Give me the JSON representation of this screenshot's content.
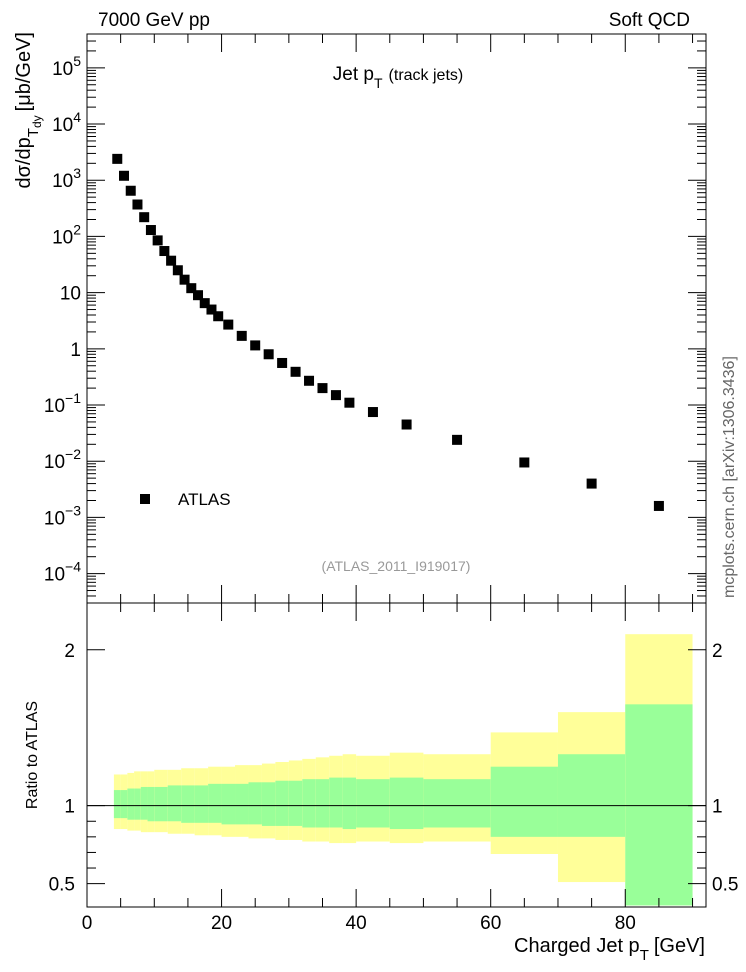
{
  "header": {
    "left": "7000 GeV pp",
    "right": "Soft QCD"
  },
  "side_label": "mcplots.cern.ch [arXiv:1306.3436]",
  "chart_data": [
    {
      "type": "scatter",
      "title_main": "Jet p",
      "title_sub": "T",
      "title_suffix": "(track jets)",
      "ylabel": {
        "pre": "dσ/dp",
        "sub": "T",
        "subsub": "dy",
        "post": "[μb/GeV]"
      },
      "y_scale": "log",
      "ylim": [
        3e-05,
        400000
      ],
      "xlim": [
        0,
        92
      ],
      "y_ticks": [
        {
          "v": 0.0001,
          "base": "10",
          "exp": "−4"
        },
        {
          "v": 0.001,
          "base": "10",
          "exp": "−3"
        },
        {
          "v": 0.01,
          "base": "10",
          "exp": "−2"
        },
        {
          "v": 0.1,
          "base": "10",
          "exp": "−1"
        },
        {
          "v": 1,
          "base": "1",
          "exp": ""
        },
        {
          "v": 10,
          "base": "10",
          "exp": ""
        },
        {
          "v": 100,
          "base": "10",
          "exp": "2"
        },
        {
          "v": 1000,
          "base": "10",
          "exp": "3"
        },
        {
          "v": 10000,
          "base": "10",
          "exp": "4"
        },
        {
          "v": 100000,
          "base": "10",
          "exp": "5"
        }
      ],
      "series": [
        {
          "name": "ATLAS",
          "color": "#000000",
          "points": [
            {
              "x": 4.5,
              "y": 2400
            },
            {
              "x": 5.5,
              "y": 1200
            },
            {
              "x": 6.5,
              "y": 650
            },
            {
              "x": 7.5,
              "y": 370
            },
            {
              "x": 8.5,
              "y": 220
            },
            {
              "x": 9.5,
              "y": 130
            },
            {
              "x": 10.5,
              "y": 85
            },
            {
              "x": 11.5,
              "y": 55
            },
            {
              "x": 12.5,
              "y": 37
            },
            {
              "x": 13.5,
              "y": 25
            },
            {
              "x": 14.5,
              "y": 17
            },
            {
              "x": 15.5,
              "y": 12
            },
            {
              "x": 16.5,
              "y": 9
            },
            {
              "x": 17.5,
              "y": 6.5
            },
            {
              "x": 18.5,
              "y": 5
            },
            {
              "x": 19.5,
              "y": 3.8
            },
            {
              "x": 21,
              "y": 2.7
            },
            {
              "x": 23,
              "y": 1.7
            },
            {
              "x": 25,
              "y": 1.15
            },
            {
              "x": 27,
              "y": 0.8
            },
            {
              "x": 29,
              "y": 0.56
            },
            {
              "x": 31,
              "y": 0.39
            },
            {
              "x": 33,
              "y": 0.27
            },
            {
              "x": 35,
              "y": 0.2
            },
            {
              "x": 37,
              "y": 0.15
            },
            {
              "x": 39,
              "y": 0.11
            },
            {
              "x": 42.5,
              "y": 0.075
            },
            {
              "x": 47.5,
              "y": 0.045
            },
            {
              "x": 55,
              "y": 0.024
            },
            {
              "x": 65,
              "y": 0.0095
            },
            {
              "x": 75,
              "y": 0.004
            },
            {
              "x": 85,
              "y": 0.0016
            }
          ]
        }
      ],
      "legend": {
        "placement": "bottom-left",
        "label": "ATLAS"
      },
      "watermark": "(ATLAS_2011_I919017)"
    },
    {
      "type": "area",
      "ylabel": "Ratio to ATLAS",
      "xlabel": {
        "pre": "Charged Jet p",
        "sub": "T",
        "post": "[GeV]"
      },
      "ylim": [
        0.35,
        2.3
      ],
      "xlim": [
        0,
        92
      ],
      "x_ticks": [
        "0",
        "20",
        "40",
        "60",
        "80"
      ],
      "x_tick_values": [
        0,
        20,
        40,
        60,
        80
      ],
      "y_ticks": [
        "0.5",
        "1",
        "2"
      ],
      "y_tick_values": [
        0.5,
        1,
        2
      ],
      "reference_line": 1,
      "band_colors": {
        "outer": "#ffff99",
        "inner": "#99ff99"
      },
      "bins": [
        {
          "lo": 4,
          "hi": 5,
          "y1": 1.2,
          "y0": 0.85,
          "g1": 1.1,
          "g0": 0.92
        },
        {
          "lo": 5,
          "hi": 6,
          "y1": 1.2,
          "y0": 0.85,
          "g1": 1.1,
          "g0": 0.92
        },
        {
          "lo": 6,
          "hi": 7,
          "y1": 1.21,
          "y0": 0.84,
          "g1": 1.11,
          "g0": 0.91
        },
        {
          "lo": 7,
          "hi": 8,
          "y1": 1.22,
          "y0": 0.84,
          "g1": 1.11,
          "g0": 0.91
        },
        {
          "lo": 8,
          "hi": 9,
          "y1": 1.22,
          "y0": 0.83,
          "g1": 1.12,
          "g0": 0.91
        },
        {
          "lo": 9,
          "hi": 10,
          "y1": 1.22,
          "y0": 0.83,
          "g1": 1.12,
          "g0": 0.9
        },
        {
          "lo": 10,
          "hi": 12,
          "y1": 1.23,
          "y0": 0.83,
          "g1": 1.12,
          "g0": 0.9
        },
        {
          "lo": 12,
          "hi": 14,
          "y1": 1.23,
          "y0": 0.82,
          "g1": 1.13,
          "g0": 0.9
        },
        {
          "lo": 14,
          "hi": 16,
          "y1": 1.24,
          "y0": 0.82,
          "g1": 1.13,
          "g0": 0.89
        },
        {
          "lo": 16,
          "hi": 18,
          "y1": 1.24,
          "y0": 0.81,
          "g1": 1.13,
          "g0": 0.89
        },
        {
          "lo": 18,
          "hi": 20,
          "y1": 1.25,
          "y0": 0.81,
          "g1": 1.14,
          "g0": 0.89
        },
        {
          "lo": 20,
          "hi": 22,
          "y1": 1.25,
          "y0": 0.8,
          "g1": 1.14,
          "g0": 0.88
        },
        {
          "lo": 22,
          "hi": 24,
          "y1": 1.26,
          "y0": 0.8,
          "g1": 1.14,
          "g0": 0.88
        },
        {
          "lo": 24,
          "hi": 26,
          "y1": 1.26,
          "y0": 0.79,
          "g1": 1.15,
          "g0": 0.88
        },
        {
          "lo": 26,
          "hi": 28,
          "y1": 1.27,
          "y0": 0.79,
          "g1": 1.15,
          "g0": 0.87
        },
        {
          "lo": 28,
          "hi": 30,
          "y1": 1.28,
          "y0": 0.78,
          "g1": 1.16,
          "g0": 0.87
        },
        {
          "lo": 30,
          "hi": 32,
          "y1": 1.29,
          "y0": 0.78,
          "g1": 1.16,
          "g0": 0.87
        },
        {
          "lo": 32,
          "hi": 34,
          "y1": 1.3,
          "y0": 0.77,
          "g1": 1.17,
          "g0": 0.86
        },
        {
          "lo": 34,
          "hi": 36,
          "y1": 1.31,
          "y0": 0.77,
          "g1": 1.17,
          "g0": 0.86
        },
        {
          "lo": 36,
          "hi": 38,
          "y1": 1.32,
          "y0": 0.76,
          "g1": 1.18,
          "g0": 0.86
        },
        {
          "lo": 38,
          "hi": 40,
          "y1": 1.33,
          "y0": 0.76,
          "g1": 1.18,
          "g0": 0.85
        },
        {
          "lo": 40,
          "hi": 45,
          "y1": 1.32,
          "y0": 0.77,
          "g1": 1.17,
          "g0": 0.86
        },
        {
          "lo": 45,
          "hi": 50,
          "y1": 1.34,
          "y0": 0.76,
          "g1": 1.18,
          "g0": 0.85
        },
        {
          "lo": 50,
          "hi": 60,
          "y1": 1.33,
          "y0": 0.77,
          "g1": 1.17,
          "g0": 0.86
        },
        {
          "lo": 60,
          "hi": 70,
          "y1": 1.47,
          "y0": 0.69,
          "g1": 1.25,
          "g0": 0.8
        },
        {
          "lo": 70,
          "hi": 80,
          "y1": 1.6,
          "y0": 0.51,
          "g1": 1.33,
          "g0": 0.8
        },
        {
          "lo": 80,
          "hi": 90,
          "y1": 2.1,
          "y0": 0.36,
          "g1": 1.65,
          "g0": 0.36
        }
      ]
    }
  ]
}
